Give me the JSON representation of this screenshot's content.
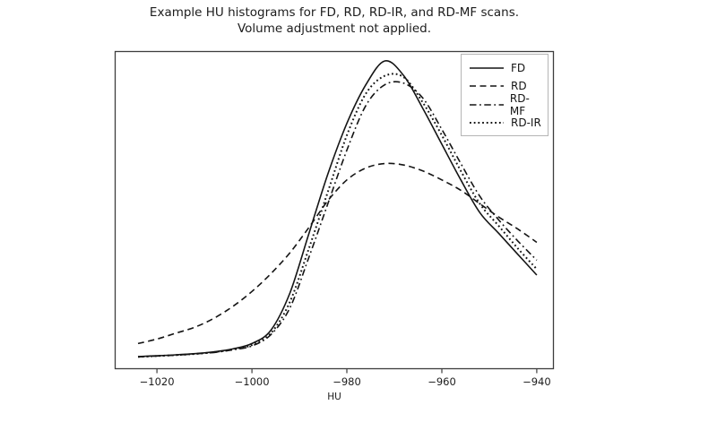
{
  "figure": {
    "title_line1": "Example HU histograms for FD, RD, RD-IR, and RD-MF scans.",
    "title_line2": "Volume adjustment not applied."
  },
  "chart_data": {
    "type": "line",
    "title": "Example HU histograms for FD, RD, RD-IR, and RD-MF scans. Volume adjustment not applied.",
    "xlabel": "HU",
    "ylabel": "",
    "grid": false,
    "legend_position": "upper right",
    "line_color": "#141414",
    "axis_color": "#3d3d3d",
    "tick_label_color": "#1c1c1c",
    "xlim": [
      -1028.9,
      -936.4
    ],
    "ylim": [
      0,
      1.03
    ],
    "x_ticks": [
      -1020,
      -1000,
      -980,
      -960,
      -940
    ],
    "y_ticks": [],
    "x": [
      -1024,
      -1020,
      -1016,
      -1012,
      -1008,
      -1004,
      -1000,
      -996,
      -992,
      -988,
      -984,
      -980,
      -976,
      -972,
      -968,
      -964,
      -960,
      -956,
      -952,
      -948,
      -944,
      -940
    ],
    "series": [
      {
        "name": "FD",
        "style": "solid",
        "values": [
          0.006,
          0.009,
          0.012,
          0.016,
          0.022,
          0.032,
          0.05,
          0.095,
          0.22,
          0.42,
          0.62,
          0.79,
          0.92,
          1.0,
          0.95,
          0.84,
          0.72,
          0.6,
          0.49,
          0.42,
          0.35,
          0.28
        ]
      },
      {
        "name": "RD",
        "style": "dashed",
        "values": [
          0.05,
          0.065,
          0.085,
          0.105,
          0.135,
          0.175,
          0.225,
          0.285,
          0.355,
          0.44,
          0.53,
          0.6,
          0.64,
          0.655,
          0.65,
          0.63,
          0.6,
          0.565,
          0.52,
          0.475,
          0.435,
          0.39
        ]
      },
      {
        "name": "RD-MF",
        "style": "dashdot",
        "values": [
          0.005,
          0.008,
          0.011,
          0.015,
          0.02,
          0.029,
          0.042,
          0.08,
          0.17,
          0.34,
          0.52,
          0.7,
          0.85,
          0.92,
          0.925,
          0.875,
          0.77,
          0.655,
          0.545,
          0.465,
          0.395,
          0.33
        ]
      },
      {
        "name": "RD-IR",
        "style": "dotted",
        "values": [
          0.005,
          0.008,
          0.011,
          0.015,
          0.021,
          0.03,
          0.045,
          0.085,
          0.19,
          0.37,
          0.56,
          0.75,
          0.89,
          0.95,
          0.945,
          0.86,
          0.75,
          0.63,
          0.52,
          0.445,
          0.37,
          0.3
        ]
      }
    ]
  }
}
